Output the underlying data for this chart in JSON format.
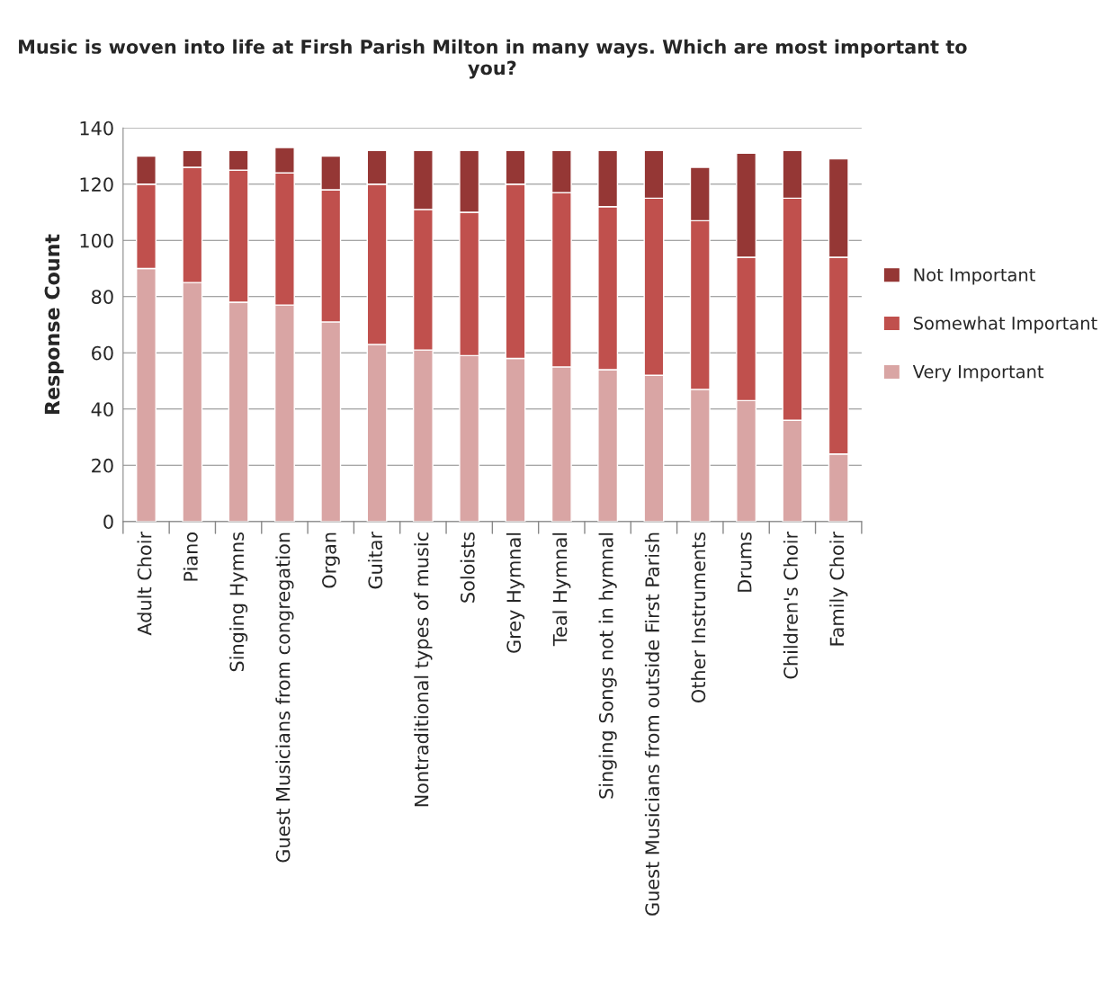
{
  "chart_data": {
    "type": "bar",
    "stacked": true,
    "title": "Music is woven into life at Firsh Parish Milton in many ways. Which are most important to you?",
    "ylabel": "Response Count",
    "categories": [
      "Adult Choir",
      "Piano",
      "Singing Hymns",
      "Guest Musicians from congregation",
      "Organ",
      "Guitar",
      "Nontraditional types of music",
      "Soloists",
      "Grey Hymnal",
      "Teal Hymnal",
      "Singing Songs not in hymnal",
      "Guest Musicians from outside First Parish",
      "Other Instruments",
      "Drums",
      "Children's Choir",
      "Family Choir"
    ],
    "series": [
      {
        "name": "Very Important",
        "color": "#d9a5a4",
        "values": [
          90,
          85,
          78,
          77,
          71,
          63,
          61,
          59,
          58,
          55,
          54,
          52,
          47,
          43,
          36,
          24
        ]
      },
      {
        "name": "Somewhat Important",
        "color": "#c0504d",
        "values": [
          30,
          41,
          47,
          47,
          47,
          57,
          50,
          51,
          62,
          62,
          58,
          63,
          60,
          51,
          79,
          70
        ]
      },
      {
        "name": "Not Important",
        "color": "#953735",
        "values": [
          10,
          6,
          7,
          9,
          12,
          12,
          21,
          22,
          12,
          15,
          20,
          17,
          19,
          37,
          17,
          35
        ]
      }
    ],
    "ylim": [
      0,
      140
    ],
    "yticks": [
      0,
      20,
      40,
      60,
      80,
      100,
      120,
      140
    ],
    "grid": "y",
    "legend": "right"
  }
}
